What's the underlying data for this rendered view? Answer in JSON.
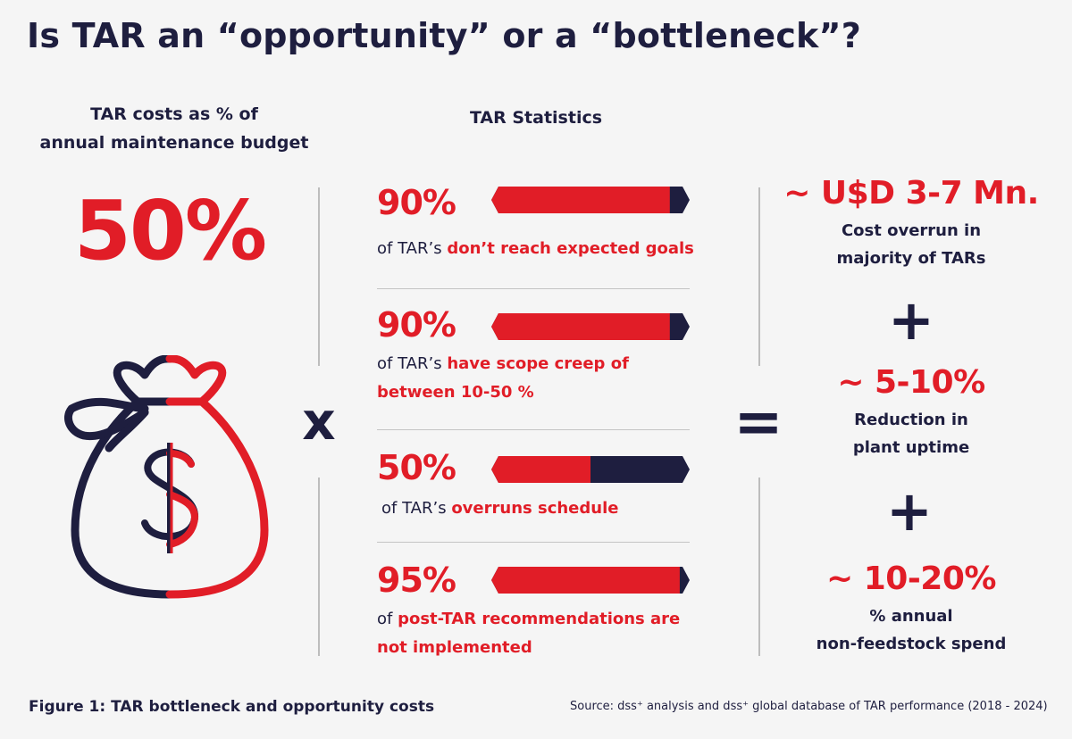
{
  "title": "Is TAR an “opportunity” or a “bottleneck”?",
  "left": {
    "heading_line1": "TAR costs as % of",
    "heading_line2": "annual maintenance budget",
    "value": "50%",
    "icon": "money-bag-dollar-icon"
  },
  "operators": {
    "multiply": "x",
    "equals": "=",
    "plus": "+"
  },
  "middle": {
    "heading": "TAR Statistics"
  },
  "chart_data": {
    "type": "bar",
    "categories": [
      "of TAR’s don’t reach expected goals",
      "of TAR’s have scope creep of between 10-50 %",
      "of TAR’s overruns schedule",
      "of post-TAR recommendations are not implemented"
    ],
    "values": [
      90,
      90,
      50,
      95
    ],
    "value_labels": [
      "90%",
      "90%",
      "50%",
      "95%"
    ],
    "ylim": [
      0,
      100
    ],
    "colors": {
      "filled": "#e11d27",
      "remainder": "#1e1e3f"
    },
    "rows": [
      {
        "pre": "of TAR’s ",
        "highlight": "don’t reach expected goals",
        "line2": ""
      },
      {
        "pre": "of TAR’s ",
        "highlight": "have scope creep of",
        "line2": "between 10-50 %"
      },
      {
        "pre": "of TAR’s ",
        "highlight": "overruns schedule",
        "line2": ""
      },
      {
        "pre": "of ",
        "highlight": "post-TAR recommendations are",
        "line2": "not implemented"
      }
    ]
  },
  "right": [
    {
      "value": "~ U$D 3-7 Mn.",
      "line1": "Cost overrun in",
      "line2": "majority of TARs"
    },
    {
      "value": "~ 5-10%",
      "line1": "Reduction in",
      "line2": "plant uptime"
    },
    {
      "value": "~ 10-20%",
      "line1": "% annual",
      "line2": "non-feedstock spend"
    }
  ],
  "footer": {
    "caption": "Figure 1: TAR bottleneck and opportunity costs",
    "source": "Source: dss⁺ analysis and dss⁺ global database of TAR performance (2018 - 2024)"
  },
  "colors": {
    "red": "#e11d27",
    "navy": "#1e1e3f",
    "background": "#f5f5f5"
  }
}
